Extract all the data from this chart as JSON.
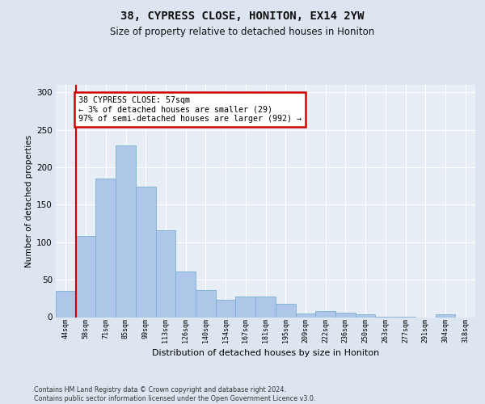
{
  "title1": "38, CYPRESS CLOSE, HONITON, EX14 2YW",
  "title2": "Size of property relative to detached houses in Honiton",
  "xlabel": "Distribution of detached houses by size in Honiton",
  "ylabel": "Number of detached properties",
  "categories": [
    "44sqm",
    "58sqm",
    "71sqm",
    "85sqm",
    "99sqm",
    "113sqm",
    "126sqm",
    "140sqm",
    "154sqm",
    "167sqm",
    "181sqm",
    "195sqm",
    "209sqm",
    "222sqm",
    "236sqm",
    "250sqm",
    "263sqm",
    "277sqm",
    "291sqm",
    "304sqm",
    "318sqm"
  ],
  "values": [
    35,
    108,
    185,
    229,
    174,
    116,
    61,
    36,
    23,
    27,
    27,
    18,
    5,
    8,
    6,
    4,
    1,
    1,
    0,
    4,
    0
  ],
  "bar_color": "#aec6e8",
  "bar_edge_color": "#7bafd4",
  "annotation_text": "38 CYPRESS CLOSE: 57sqm\n← 3% of detached houses are smaller (29)\n97% of semi-detached houses are larger (992) →",
  "annotation_box_color": "#ffffff",
  "annotation_box_edge": "#cc0000",
  "footer_text": "Contains HM Land Registry data © Crown copyright and database right 2024.\nContains public sector information licensed under the Open Government Licence v3.0.",
  "bg_color": "#dde6f0",
  "plot_bg_color": "#e8eef5",
  "ylim": [
    0,
    310
  ],
  "yticks": [
    0,
    50,
    100,
    150,
    200,
    250,
    300
  ],
  "red_line_color": "#cc0000",
  "grid_color": "#ffffff"
}
